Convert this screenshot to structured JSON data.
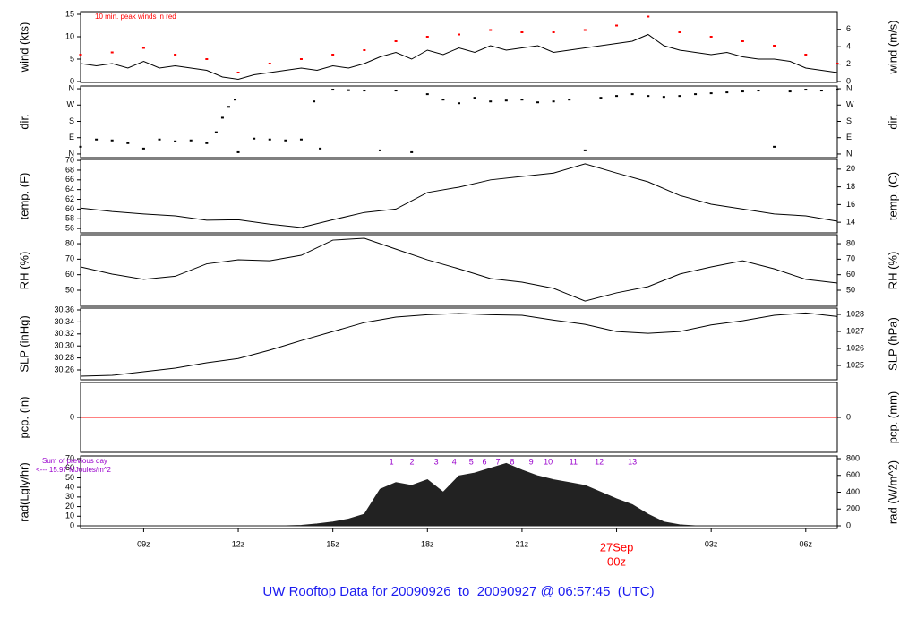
{
  "title": "UW Rooftop Data for 20090926  to  20090927 @ 06:57:45  (UTC)",
  "chart_data": [
    {
      "type": "line",
      "ylabel": "wind (kts)",
      "y2label": "wind (m/s)",
      "note": "10 min. peak winds in red",
      "xlim": [
        7,
        31
      ],
      "ylim": [
        -0.2,
        15.6
      ],
      "yticks": [
        0,
        5,
        10,
        15
      ],
      "y2lim": [
        -0.1,
        8.03
      ],
      "y2ticks": [
        0,
        2,
        4,
        6
      ],
      "series": [
        {
          "style": "line",
          "color": "#000000",
          "x": [
            7,
            7.5,
            8,
            8.5,
            9,
            9.5,
            10,
            10.5,
            11,
            11.5,
            12,
            12.5,
            13,
            13.5,
            14,
            14.5,
            15,
            15.5,
            16,
            16.5,
            17,
            17.5,
            18,
            18.5,
            19,
            19.5,
            20,
            20.5,
            21,
            21.5,
            22,
            22.5,
            23,
            23.5,
            24,
            24.5,
            25,
            25.5,
            26,
            26.5,
            27,
            27.5,
            28,
            28.5,
            29,
            29.5,
            30,
            30.5,
            31
          ],
          "values": [
            4,
            3.5,
            4,
            3,
            4.5,
            3,
            3.5,
            3,
            2.5,
            1,
            0.5,
            1.5,
            2,
            2.5,
            3,
            2.5,
            3.5,
            3,
            4,
            5.5,
            6.5,
            5,
            7,
            6,
            7.5,
            6.5,
            8,
            7,
            7.5,
            8,
            6.5,
            7,
            7.5,
            8,
            8.5,
            9,
            10.5,
            8,
            7,
            6.5,
            6,
            6.5,
            5.5,
            5,
            5,
            4.5,
            3,
            2.5,
            2
          ]
        },
        {
          "style": "points",
          "color": "#ff0000",
          "x": [
            7,
            8,
            9,
            10,
            11,
            12,
            13,
            14,
            15,
            16,
            17,
            18,
            19,
            20,
            21,
            22,
            23,
            24,
            25,
            26,
            27,
            28,
            29,
            30,
            31
          ],
          "values": [
            6,
            6.5,
            7.5,
            6,
            5,
            2,
            4,
            5,
            6,
            7,
            9,
            10,
            10.5,
            11.5,
            11,
            11,
            11.5,
            12.5,
            14.5,
            11,
            10,
            9,
            8,
            6,
            4
          ]
        }
      ]
    },
    {
      "type": "scatter",
      "ylabel": "dir.",
      "y2label": "dir.",
      "xlim": [
        7,
        31
      ],
      "ylim": [
        -20,
        375
      ],
      "yticks": [
        {
          "value": 0,
          "label": "N"
        },
        {
          "value": 90,
          "label": "E"
        },
        {
          "value": 180,
          "label": "S"
        },
        {
          "value": 270,
          "label": "W"
        },
        {
          "value": 360,
          "label": "N"
        }
      ],
      "y2lim": [
        -20,
        375
      ],
      "y2ticks": [
        {
          "value": 0,
          "label": "N"
        },
        {
          "value": 90,
          "label": "E"
        },
        {
          "value": 180,
          "label": "S"
        },
        {
          "value": 270,
          "label": "W"
        },
        {
          "value": 360,
          "label": "N"
        }
      ],
      "series": [
        {
          "style": "points",
          "color": "#000000",
          "x": [
            7,
            7.5,
            8,
            8.5,
            9,
            9.5,
            10,
            10.5,
            11,
            11.3,
            11.5,
            11.7,
            11.9,
            12,
            12.5,
            13,
            13.5,
            14,
            14.4,
            14.6,
            15,
            15.5,
            16,
            16.5,
            17,
            17.5,
            18,
            18.5,
            19,
            19.5,
            20,
            20.5,
            21,
            21.5,
            22,
            22.5,
            23,
            23.5,
            24,
            24.5,
            25,
            25.5,
            26,
            26.5,
            27,
            27.5,
            28,
            28.5,
            29,
            29.5,
            30,
            30.5,
            31
          ],
          "values": [
            40,
            80,
            75,
            60,
            30,
            80,
            70,
            75,
            60,
            120,
            200,
            260,
            300,
            10,
            85,
            80,
            75,
            80,
            290,
            30,
            355,
            352,
            350,
            20,
            350,
            10,
            330,
            300,
            280,
            310,
            290,
            295,
            300,
            285,
            290,
            300,
            20,
            310,
            320,
            330,
            320,
            315,
            320,
            330,
            335,
            340,
            345,
            350,
            40,
            345,
            355,
            350,
            355
          ]
        }
      ]
    },
    {
      "type": "line",
      "ylabel": "temp. (F)",
      "y2label": "temp. (C)",
      "xlim": [
        7,
        31
      ],
      "ylim": [
        55.1,
        70.2
      ],
      "yticks": [
        56,
        58,
        60,
        62,
        64,
        66,
        68,
        70
      ],
      "y2lim": [
        12.8,
        21.1
      ],
      "y2ticks": [
        14,
        16,
        18,
        20
      ],
      "series": [
        {
          "style": "line",
          "color": "#000000",
          "x": [
            7,
            8,
            9,
            10,
            11,
            12,
            13,
            14,
            15,
            16,
            17,
            18,
            19,
            20,
            21,
            22,
            23,
            24,
            25,
            26,
            27,
            28,
            29,
            30,
            31
          ],
          "values": [
            60.2,
            59.5,
            59,
            58.6,
            57.7,
            57.8,
            56.9,
            56.2,
            57.8,
            59.3,
            60,
            63.4,
            64.5,
            66,
            66.7,
            67.4,
            69.3,
            67.4,
            65.6,
            62.8,
            61,
            60,
            59,
            58.6,
            57.5
          ]
        }
      ]
    },
    {
      "type": "line",
      "ylabel": "RH (%)",
      "y2label": "RH (%)",
      "xlim": [
        7,
        31
      ],
      "ylim": [
        39.6,
        85.8
      ],
      "yticks": [
        50,
        60,
        70,
        80
      ],
      "y2lim": [
        39.6,
        85.8
      ],
      "y2ticks": [
        50,
        60,
        70,
        80
      ],
      "series": [
        {
          "style": "line",
          "color": "#000000",
          "x": [
            7,
            8,
            9,
            10,
            11,
            12,
            13,
            14,
            15,
            16,
            17,
            18,
            19,
            20,
            21,
            22,
            23,
            24,
            25,
            26,
            27,
            28,
            29,
            30,
            31
          ],
          "values": [
            65,
            60.4,
            57,
            59,
            67,
            69.6,
            69,
            72.5,
            82.3,
            83.5,
            76.5,
            69.6,
            63.8,
            57.5,
            55.2,
            51.2,
            43,
            48.3,
            52.3,
            60.4,
            65,
            69,
            63.8,
            57,
            54.6
          ]
        }
      ]
    },
    {
      "type": "line",
      "ylabel": "SLP (inHg)",
      "y2label": "SLP (hPa)",
      "xlim": [
        7,
        31
      ],
      "ylim": [
        30.2436,
        30.363
      ],
      "yticks": [
        30.26,
        30.28,
        {
          "value": 30.3,
          "label": "30.30"
        },
        30.32,
        30.34,
        30.36
      ],
      "y2lim": [
        1024.16,
        1028.37
      ],
      "y2ticks": [
        1025,
        1026,
        1027,
        1028
      ],
      "series": [
        {
          "style": "line",
          "color": "#000000",
          "x": [
            7,
            8,
            9,
            10,
            11,
            12,
            13,
            14,
            15,
            16,
            17,
            18,
            19,
            20,
            21,
            22,
            23,
            24,
            25,
            26,
            27,
            28,
            29,
            30,
            31
          ],
          "values": [
            30.2496,
            30.251,
            30.257,
            30.263,
            30.272,
            30.279,
            30.293,
            30.309,
            30.324,
            30.339,
            30.348,
            30.352,
            30.354,
            30.352,
            30.351,
            30.343,
            30.336,
            30.324,
            30.321,
            30.324,
            30.335,
            30.342,
            30.351,
            30.355,
            30.349
          ]
        }
      ]
    },
    {
      "type": "line",
      "ylabel": "pcp. (in)",
      "y2label": "pcp. (mm)",
      "xlim": [
        7,
        31
      ],
      "ylim": [
        -1,
        1
      ],
      "yticks": [
        0
      ],
      "y2lim": [
        -25.4,
        25.4
      ],
      "y2ticks": [
        0
      ],
      "series": [
        {
          "style": "line",
          "color": "#ff0000",
          "x": [
            7,
            31
          ],
          "values": [
            0,
            0
          ]
        }
      ]
    },
    {
      "type": "area",
      "ylabel": "rad(Lgly/hr)",
      "y2label": "rad (W/m^2)",
      "notes": [
        "Sum of previous day",
        "<--- 15.97 MJoules/m^2"
      ],
      "xlim": [
        7,
        31
      ],
      "ylim": [
        -2.8,
        72.8
      ],
      "yticks": [
        0,
        10,
        20,
        30,
        40,
        50,
        60,
        70
      ],
      "y2lim": [
        -32,
        832
      ],
      "y2ticks": [
        0,
        200,
        400,
        600,
        800
      ],
      "xticks": [
        {
          "value": 9,
          "label": "09z"
        },
        {
          "value": 12,
          "label": "12z"
        },
        {
          "value": 15,
          "label": "15z"
        },
        {
          "value": 18,
          "label": "18z"
        },
        {
          "value": 21,
          "label": "21z"
        },
        {
          "value": 24,
          "label": "00z",
          "color": "#ff0000"
        },
        {
          "value": 27,
          "label": "03z"
        },
        {
          "value": 30,
          "label": "06z"
        }
      ],
      "date_label": "27Sep",
      "hour_marks": {
        "color": "#9900cc",
        "x": [
          16.86,
          17.51,
          18.28,
          18.85,
          19.39,
          19.81,
          20.24,
          20.69,
          21.29,
          21.83,
          22.63,
          23.45,
          24.5
        ],
        "labels": [
          "1",
          "2",
          "3",
          "4",
          "5",
          "6",
          "7",
          "8",
          "9",
          "10",
          "11",
          "12",
          "13"
        ]
      },
      "series": [
        {
          "style": "area",
          "color": "#222222",
          "x": [
            7,
            7.5,
            8,
            8.5,
            9,
            9.5,
            10,
            10.5,
            11,
            11.5,
            12,
            12.5,
            13,
            13.5,
            14,
            14.5,
            15,
            15.5,
            16,
            16.5,
            17,
            17.5,
            18,
            18.5,
            19,
            19.5,
            20,
            20.5,
            21,
            21.5,
            22,
            22.5,
            23,
            23.5,
            24,
            24.5,
            25,
            25.5,
            26,
            26.5,
            27,
            27.5,
            28,
            28.5,
            29,
            29.5,
            30,
            30.5,
            31
          ],
          "values": [
            0,
            0,
            0,
            0,
            0,
            0,
            0,
            0,
            0,
            0,
            0,
            0,
            0,
            0,
            0.5,
            2,
            4,
            7,
            12,
            38,
            45,
            42,
            48,
            35,
            52,
            55,
            60,
            65,
            58,
            52,
            48,
            45,
            42,
            35,
            28,
            22,
            12,
            4,
            1,
            0,
            0,
            0,
            0,
            0,
            0,
            0,
            0,
            0,
            0
          ]
        }
      ]
    }
  ]
}
